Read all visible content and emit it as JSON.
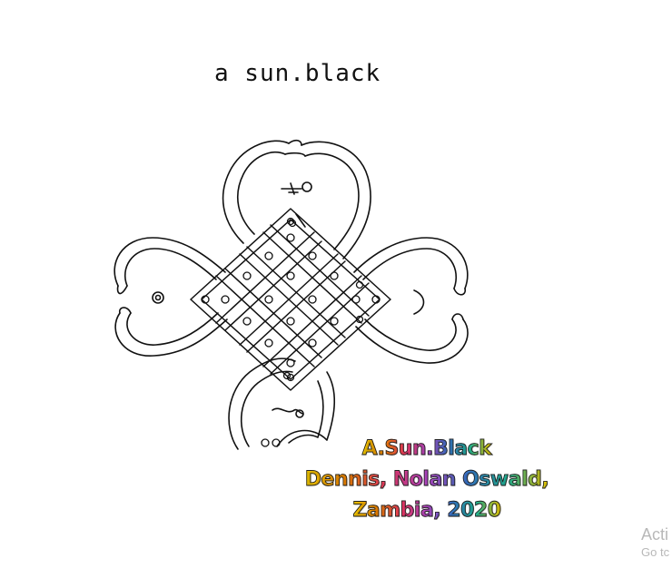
{
  "title": "a sun.black",
  "credits": {
    "line1": "A.Sun.Black",
    "line2": "Dennis, Nolan Oswald,",
    "line3": "Zambia, 2020"
  },
  "watermark": {
    "line1": "Acti",
    "line2": "Go tc"
  },
  "drawing": {
    "subject": "lusona sand-drawing knot",
    "stroke_color": "#111111"
  }
}
